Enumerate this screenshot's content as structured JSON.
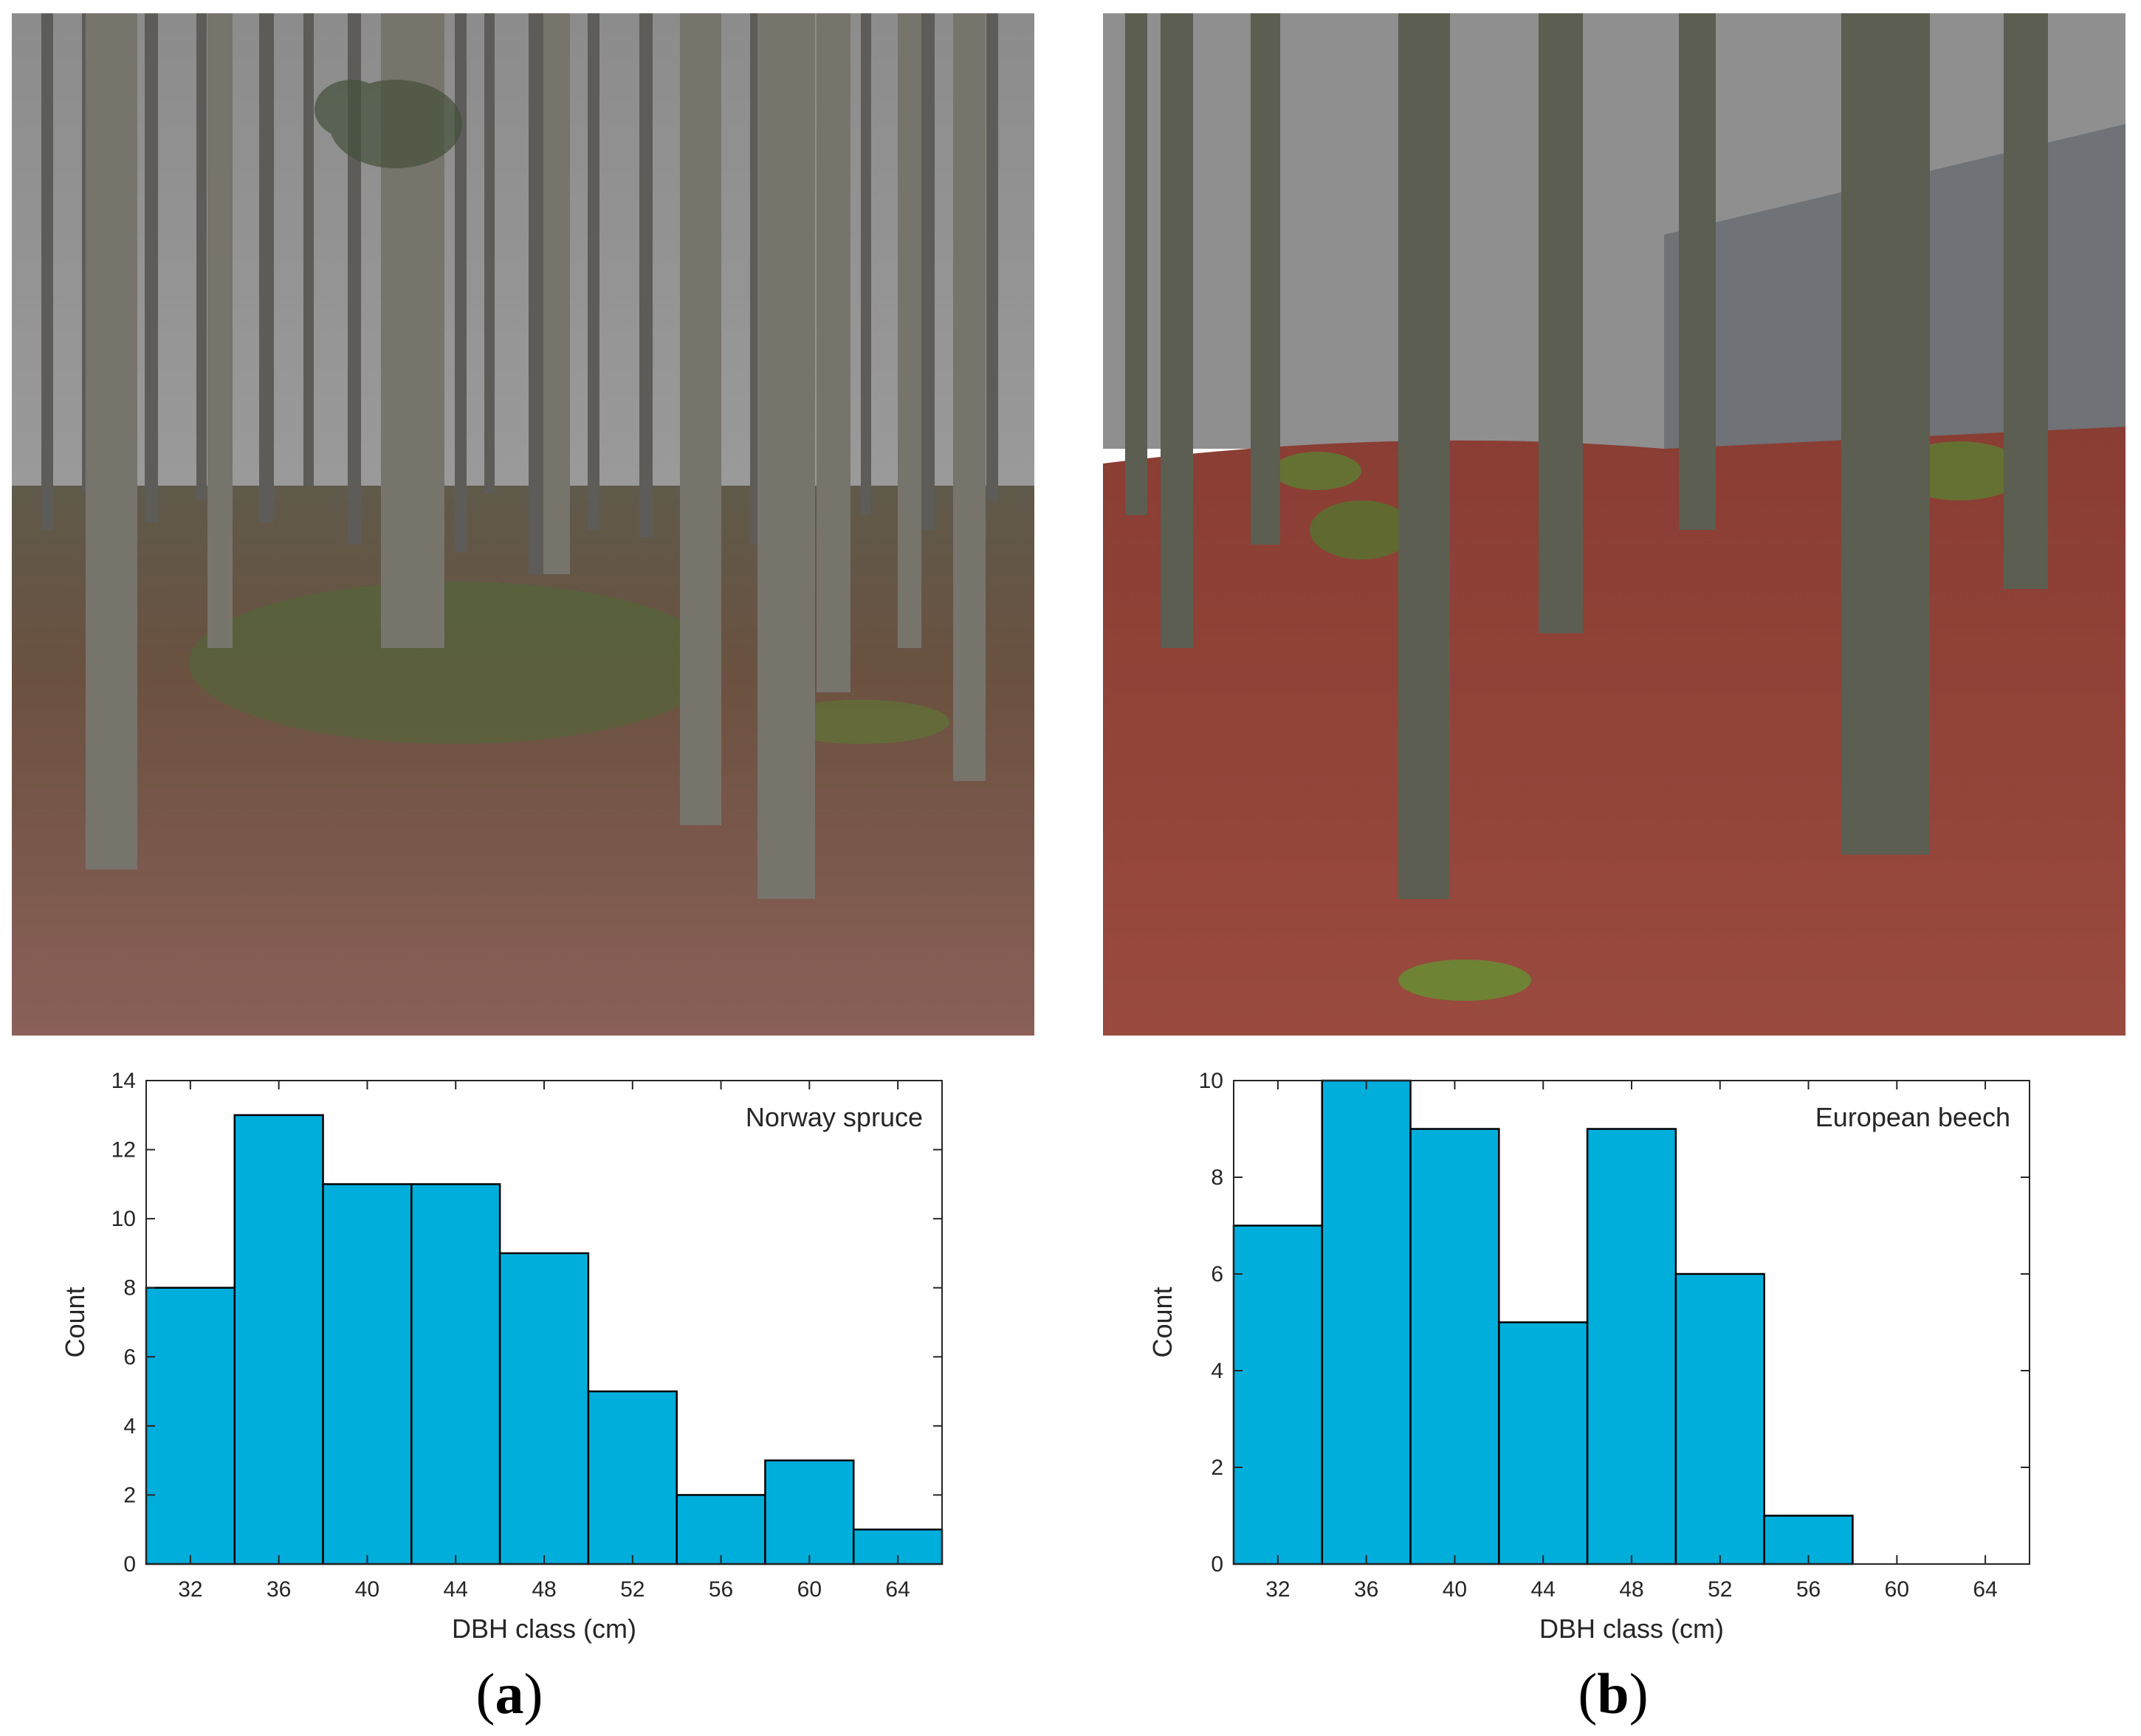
{
  "panels": [
    {
      "label_open": "(",
      "label_letter": "a",
      "label_close": ")"
    },
    {
      "label_open": "(",
      "label_letter": "b",
      "label_close": ")"
    }
  ],
  "colors": {
    "bar_fill": "#00aedc",
    "bar_edge": "#000000",
    "sky": "#8f8f8f",
    "ground_a": "#7d5148",
    "ground_b": "#8a3f36"
  },
  "chart_data": [
    {
      "type": "bar",
      "categories": [
        "32",
        "36",
        "40",
        "44",
        "48",
        "52",
        "56",
        "60",
        "64"
      ],
      "bin_edges": [
        30,
        34,
        38,
        42,
        46,
        50,
        54,
        58,
        62,
        66
      ],
      "values": [
        8,
        13,
        11,
        11,
        9,
        5,
        2,
        3,
        1
      ],
      "legend": "Norway spruce",
      "xlabel": "DBH class (cm)",
      "ylabel": "Count",
      "xlim": [
        30,
        66
      ],
      "ylim": [
        0,
        14
      ],
      "yticks": [
        0,
        2,
        4,
        6,
        8,
        10,
        12,
        14
      ],
      "xticks": [
        32,
        36,
        40,
        44,
        48,
        52,
        56,
        60,
        64
      ],
      "grid": false,
      "legend_position": "top-right"
    },
    {
      "type": "bar",
      "categories": [
        "32",
        "36",
        "40",
        "44",
        "48",
        "52",
        "56",
        "60",
        "64"
      ],
      "bin_edges": [
        30,
        34,
        38,
        42,
        46,
        50,
        54,
        58,
        62,
        66
      ],
      "values": [
        7,
        10,
        9,
        5,
        9,
        6,
        1,
        0,
        0
      ],
      "legend": "European beech",
      "xlabel": "DBH class (cm)",
      "ylabel": "Count",
      "xlim": [
        30,
        66
      ],
      "ylim": [
        0,
        10
      ],
      "yticks": [
        0,
        2,
        4,
        6,
        8,
        10
      ],
      "xticks": [
        32,
        36,
        40,
        44,
        48,
        52,
        56,
        60,
        64
      ],
      "grid": false,
      "legend_position": "top-right"
    }
  ]
}
